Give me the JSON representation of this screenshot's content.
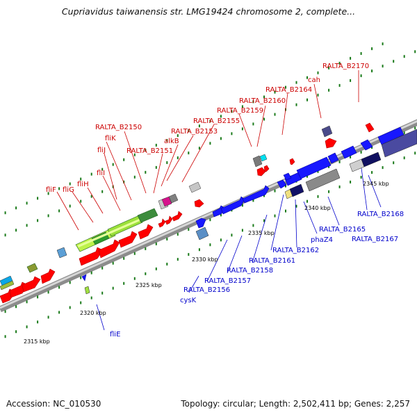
{
  "title": "Cupriavidus taiwanensis str. LMG19424 chromosome 2, complete...",
  "accession": "Accession: NC_010530",
  "summary": "Topology: circular; Length: 2,502,411 bp; Genes: 2,257",
  "ticks": [
    "2315 kbp",
    "2320 kbp",
    "2325 kbp",
    "2330 kbp",
    "2335 kbp",
    "2340 kbp",
    "2345 kbp"
  ],
  "labels_top": [
    "RALTA_B2170",
    "cah",
    "RALTA_B2164",
    "RALTA_B2160",
    "RALTA_B2159",
    "RALTA_B2155",
    "RALTA_B2153",
    "alkB",
    "RALTA_B2151",
    "RALTA_B2150",
    "fliK",
    "fliJ",
    "fliI",
    "fliH",
    "fliG",
    "fliF"
  ],
  "labels_bottom": [
    "fliE",
    "cysK",
    "RALTA_B2156",
    "RALTA_B2157",
    "RALTA_B2158",
    "RALTA_B2161",
    "RALTA_B2162",
    "phaZ4",
    "RALTA_B2165",
    "RALTA_B2167",
    "RALTA_B2168"
  ],
  "colors": {
    "top_label": "#cc0000",
    "bottom_label": "#0000cc",
    "tick_dash": "#1a7a1a"
  }
}
